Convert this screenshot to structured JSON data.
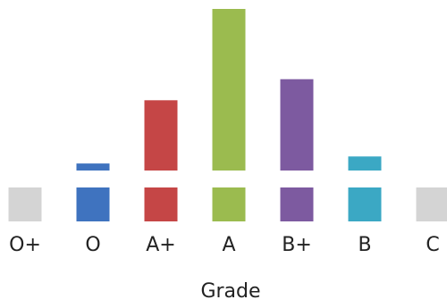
{
  "chart_data": {
    "type": "bar",
    "categories": [
      "O+",
      "O",
      "A+",
      "A",
      "B+",
      "B",
      "C"
    ],
    "values": [
      0,
      1,
      10,
      23,
      13,
      2,
      0
    ],
    "colors": [
      "#d4d4d4",
      "#3f73bf",
      "#c54646",
      "#9bbb4f",
      "#7d5aa0",
      "#3ba8c4",
      "#d4d4d4"
    ],
    "xlabel": "Grade",
    "ylim": [
      0,
      23
    ],
    "grid": false,
    "legend": "none"
  }
}
